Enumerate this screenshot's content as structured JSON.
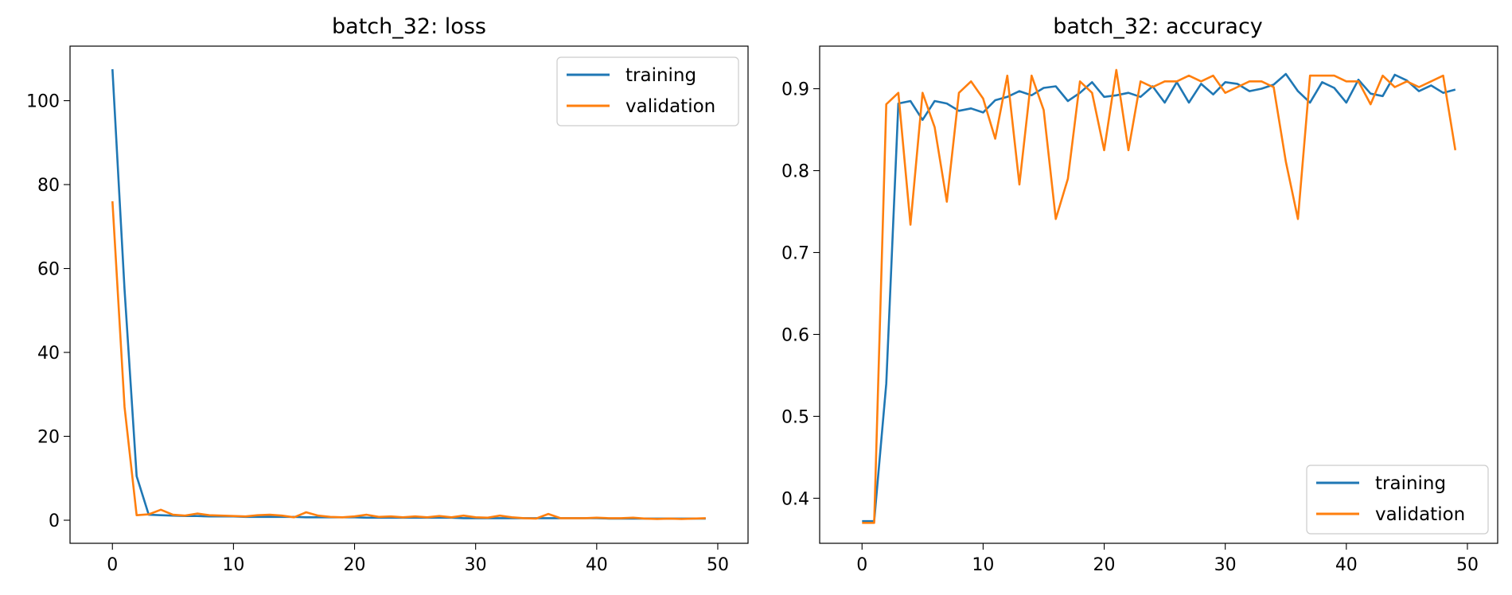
{
  "chart_data": [
    {
      "type": "line",
      "title": "batch_32: loss",
      "xlabel": "",
      "ylabel": "",
      "xlim": [
        -3.5,
        52.5
      ],
      "ylim": [
        -5.5,
        113
      ],
      "xticks": [
        0,
        10,
        20,
        30,
        40,
        50
      ],
      "yticks": [
        0,
        20,
        40,
        60,
        80,
        100
      ],
      "legend_position": "top-right",
      "grid": false,
      "x": [
        0,
        1,
        2,
        3,
        4,
        5,
        6,
        7,
        8,
        9,
        10,
        11,
        12,
        13,
        14,
        15,
        16,
        17,
        18,
        19,
        20,
        21,
        22,
        23,
        24,
        25,
        26,
        27,
        28,
        29,
        30,
        31,
        32,
        33,
        34,
        35,
        36,
        37,
        38,
        39,
        40,
        41,
        42,
        43,
        44,
        45,
        46,
        47,
        48,
        49
      ],
      "series": [
        {
          "name": "training",
          "color": "#1f77b4",
          "values": [
            107.5,
            55.0,
            10.5,
            1.3,
            1.2,
            1.1,
            1.0,
            1.0,
            0.9,
            0.9,
            0.9,
            0.8,
            0.8,
            0.8,
            0.8,
            0.8,
            0.7,
            0.7,
            0.7,
            0.7,
            0.7,
            0.6,
            0.6,
            0.6,
            0.6,
            0.6,
            0.6,
            0.6,
            0.6,
            0.5,
            0.5,
            0.5,
            0.5,
            0.5,
            0.5,
            0.5,
            0.5,
            0.5,
            0.5,
            0.5,
            0.5,
            0.4,
            0.4,
            0.4,
            0.4,
            0.4,
            0.4,
            0.4,
            0.4,
            0.4
          ]
        },
        {
          "name": "validation",
          "color": "#ff7f0e",
          "values": [
            76.0,
            27.0,
            1.2,
            1.4,
            2.5,
            1.3,
            1.1,
            1.6,
            1.2,
            1.1,
            1.0,
            0.9,
            1.2,
            1.3,
            1.1,
            0.7,
            1.9,
            1.1,
            0.8,
            0.7,
            0.9,
            1.3,
            0.8,
            0.9,
            0.7,
            0.9,
            0.7,
            1.0,
            0.7,
            1.1,
            0.7,
            0.6,
            1.1,
            0.7,
            0.5,
            0.4,
            1.5,
            0.5,
            0.5,
            0.5,
            0.6,
            0.5,
            0.5,
            0.6,
            0.4,
            0.3,
            0.4,
            0.3,
            0.4,
            0.5
          ]
        }
      ]
    },
    {
      "type": "line",
      "title": "batch_32: accuracy",
      "xlabel": "",
      "ylabel": "",
      "xlim": [
        -3.5,
        52.5
      ],
      "ylim": [
        0.345,
        0.952
      ],
      "xticks": [
        0,
        10,
        20,
        30,
        40,
        50
      ],
      "yticks": [
        0.4,
        0.5,
        0.6,
        0.7,
        0.8,
        0.9
      ],
      "legend_position": "bottom-right",
      "grid": false,
      "x": [
        0,
        1,
        2,
        3,
        4,
        5,
        6,
        7,
        8,
        9,
        10,
        11,
        12,
        13,
        14,
        15,
        16,
        17,
        18,
        19,
        20,
        21,
        22,
        23,
        24,
        25,
        26,
        27,
        28,
        29,
        30,
        31,
        32,
        33,
        34,
        35,
        36,
        37,
        38,
        39,
        40,
        41,
        42,
        43,
        44,
        45,
        46,
        47,
        48,
        49
      ],
      "series": [
        {
          "name": "training",
          "color": "#1f77b4",
          "values": [
            0.372,
            0.372,
            0.54,
            0.882,
            0.885,
            0.862,
            0.885,
            0.882,
            0.873,
            0.876,
            0.871,
            0.886,
            0.89,
            0.897,
            0.892,
            0.901,
            0.903,
            0.885,
            0.895,
            0.908,
            0.89,
            0.892,
            0.895,
            0.89,
            0.903,
            0.883,
            0.908,
            0.883,
            0.906,
            0.893,
            0.908,
            0.906,
            0.897,
            0.9,
            0.905,
            0.918,
            0.897,
            0.883,
            0.908,
            0.901,
            0.883,
            0.911,
            0.894,
            0.891,
            0.917,
            0.91,
            0.897,
            0.904,
            0.895,
            0.899
          ]
        },
        {
          "name": "validation",
          "color": "#ff7f0e",
          "values": [
            0.37,
            0.37,
            0.881,
            0.895,
            0.734,
            0.895,
            0.853,
            0.762,
            0.895,
            0.909,
            0.888,
            0.839,
            0.916,
            0.783,
            0.916,
            0.874,
            0.741,
            0.79,
            0.909,
            0.895,
            0.825,
            0.923,
            0.825,
            0.909,
            0.902,
            0.909,
            0.909,
            0.916,
            0.909,
            0.916,
            0.895,
            0.902,
            0.909,
            0.909,
            0.902,
            0.811,
            0.741,
            0.916,
            0.916,
            0.916,
            0.909,
            0.909,
            0.881,
            0.916,
            0.902,
            0.909,
            0.902,
            0.909,
            0.916,
            0.825
          ]
        }
      ]
    }
  ]
}
